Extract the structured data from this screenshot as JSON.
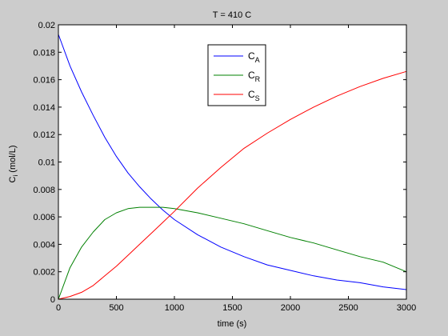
{
  "chart_data": {
    "type": "line",
    "title": "T = 410 C",
    "xlabel": "time (s)",
    "ylabel_main": "C",
    "ylabel_sub": "i",
    "ylabel_rest": " (mol/L)",
    "xlim": [
      0,
      3000
    ],
    "ylim": [
      0,
      0.02
    ],
    "xticks": [
      0,
      500,
      1000,
      1500,
      2000,
      2500,
      3000
    ],
    "xtick_labels": [
      "0",
      "500",
      "1000",
      "1500",
      "2000",
      "2500",
      "3000"
    ],
    "yticks": [
      0,
      0.002,
      0.004,
      0.006,
      0.008,
      0.01,
      0.012,
      0.014,
      0.016,
      0.018,
      0.02
    ],
    "ytick_labels": [
      "0",
      "0.002",
      "0.004",
      "0.006",
      "0.008",
      "0.01",
      "0.012",
      "0.014",
      "0.016",
      "0.018",
      "0.02"
    ],
    "grid": false,
    "legend_position": "top-center",
    "x": [
      0,
      100,
      200,
      300,
      400,
      500,
      600,
      700,
      800,
      900,
      1000,
      1200,
      1400,
      1600,
      1800,
      2000,
      2200,
      2400,
      2600,
      2800,
      3000
    ],
    "series": [
      {
        "name_main": "C",
        "name_sub": "A",
        "color": "#0000ff",
        "values": [
          0.0193,
          0.017,
          0.0151,
          0.0134,
          0.0118,
          0.0104,
          0.0092,
          0.0082,
          0.0073,
          0.0065,
          0.0058,
          0.0047,
          0.0038,
          0.0031,
          0.0025,
          0.0021,
          0.0017,
          0.0014,
          0.0012,
          0.0009,
          0.0007
        ]
      },
      {
        "name_main": "C",
        "name_sub": "R",
        "color": "#008000",
        "values": [
          0.0,
          0.0023,
          0.0038,
          0.0049,
          0.0058,
          0.0063,
          0.0066,
          0.0067,
          0.0067,
          0.0067,
          0.0066,
          0.0063,
          0.0059,
          0.0055,
          0.005,
          0.0045,
          0.0041,
          0.0036,
          0.0031,
          0.0027,
          0.002
        ]
      },
      {
        "name_main": "C",
        "name_sub": "S",
        "color": "#ff0000",
        "values": [
          0.0,
          0.0002,
          0.0005,
          0.001,
          0.0017,
          0.0024,
          0.0032,
          0.004,
          0.0048,
          0.0056,
          0.0064,
          0.0081,
          0.0096,
          0.011,
          0.0121,
          0.0131,
          0.014,
          0.0148,
          0.0155,
          0.0161,
          0.0166
        ]
      }
    ]
  }
}
